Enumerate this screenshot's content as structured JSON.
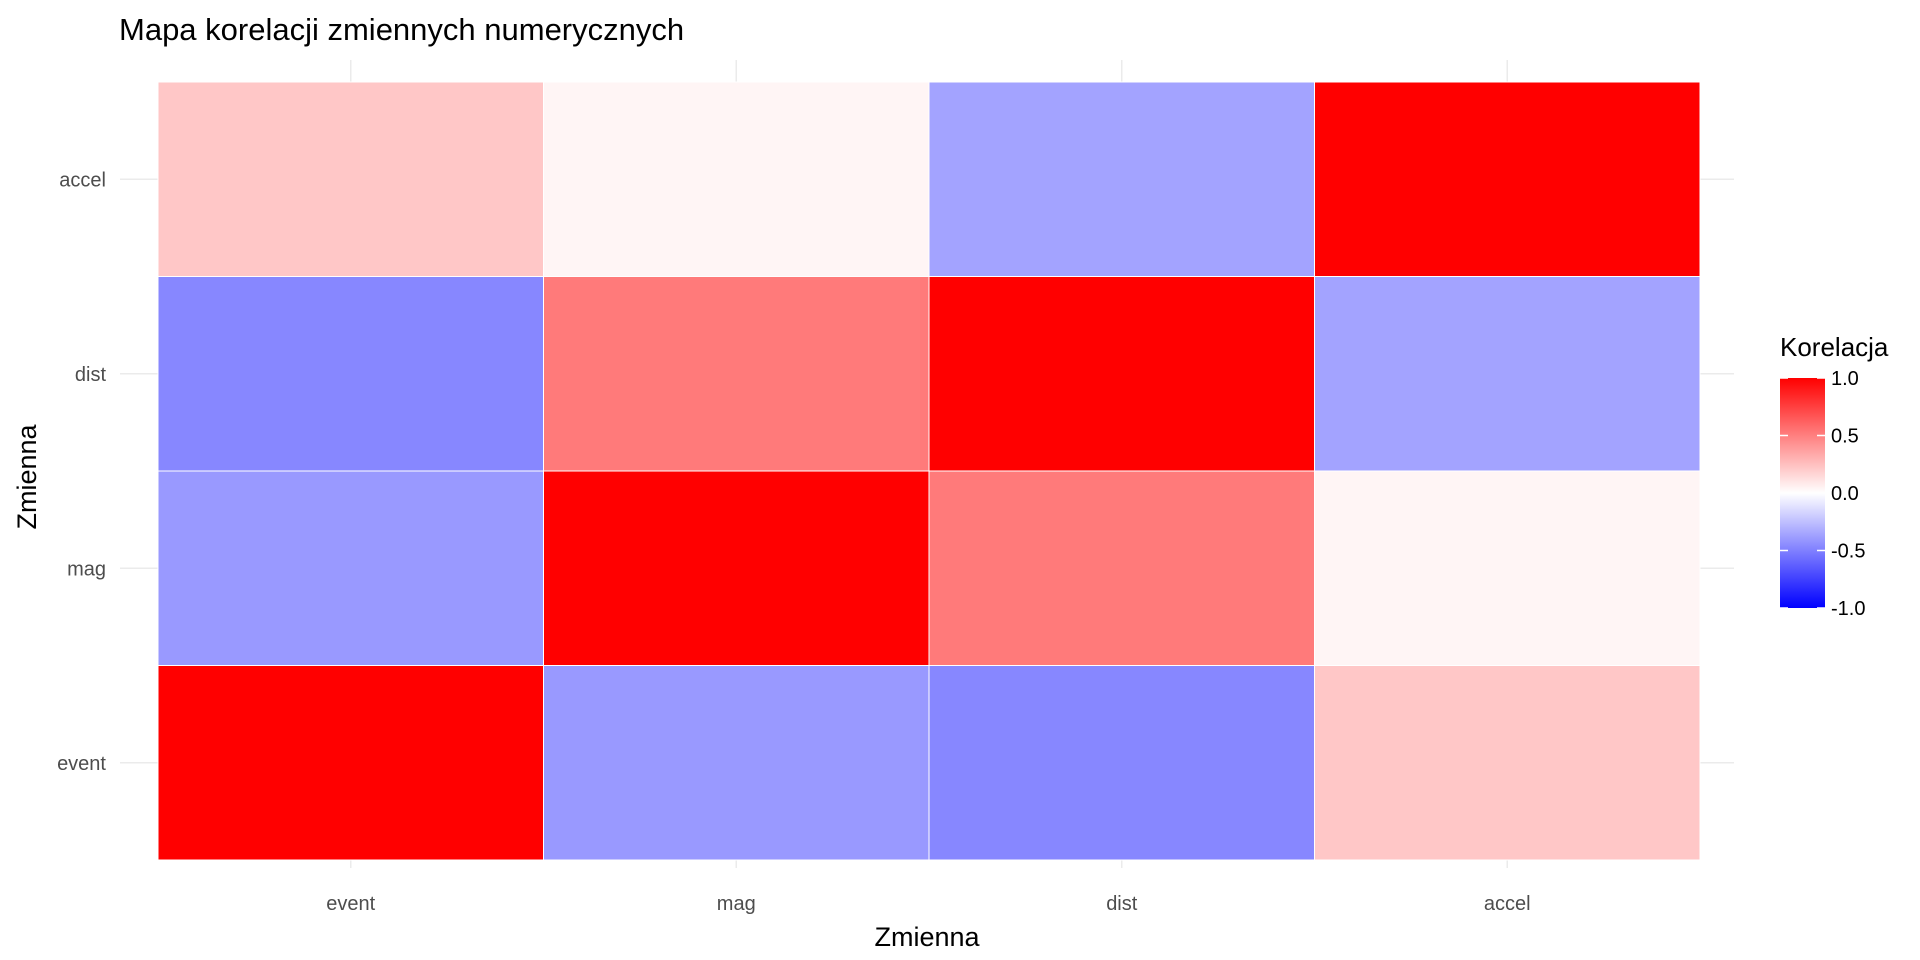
{
  "chart_data": {
    "type": "heatmap",
    "title": "Mapa korelacji zmiennych numerycznych",
    "xlabel": "Zmienna",
    "ylabel": "Zmienna",
    "x_categories": [
      "event",
      "mag",
      "dist",
      "accel"
    ],
    "y_categories": [
      "event",
      "mag",
      "dist",
      "accel"
    ],
    "values": [
      [
        1.0,
        -0.4,
        -0.47,
        0.22
      ],
      [
        -0.4,
        1.0,
        0.52,
        0.04
      ],
      [
        -0.47,
        0.52,
        1.0,
        -0.36
      ],
      [
        0.22,
        0.04,
        -0.36,
        1.0
      ]
    ],
    "color_scale": {
      "low": "#0000ff",
      "mid": "#ffffff",
      "high": "#ff0000",
      "limits": [
        -1.0,
        1.0
      ],
      "midpoint": 0.0
    },
    "legend": {
      "title": "Korelacja",
      "position": "right",
      "breaks": [
        "1.0",
        "0.5",
        "0.0",
        "-0.5",
        "-1.0"
      ]
    },
    "grid": true
  }
}
